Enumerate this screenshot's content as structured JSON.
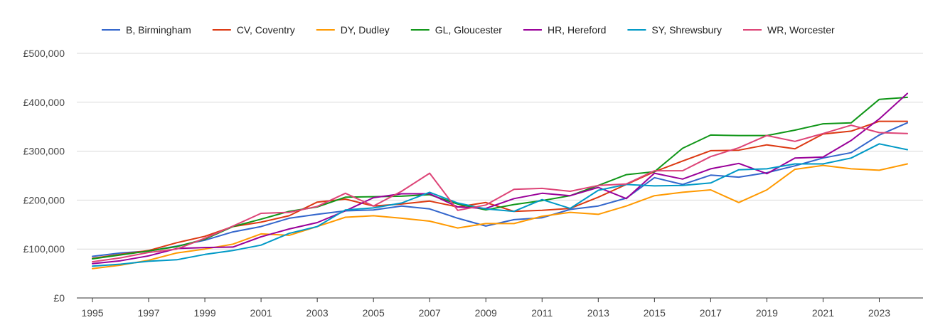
{
  "chart_data": {
    "type": "line",
    "title": "",
    "xlabel": "",
    "ylabel": "",
    "x": [
      1995,
      1996,
      1997,
      1998,
      1999,
      2000,
      2001,
      2002,
      2003,
      2004,
      2005,
      2006,
      2007,
      2008,
      2009,
      2010,
      2011,
      2012,
      2013,
      2014,
      2015,
      2016,
      2017,
      2018,
      2019,
      2020,
      2021,
      2022,
      2023,
      2024
    ],
    "xlim": [
      1995,
      2024
    ],
    "ylim": [
      0,
      500000
    ],
    "x_ticks": [
      "1995",
      "1997",
      "1999",
      "2001",
      "2003",
      "2005",
      "2007",
      "2009",
      "2011",
      "2013",
      "2015",
      "2017",
      "2019",
      "2021",
      "2023"
    ],
    "y_ticks": [
      "£0",
      "£100,000",
      "£200,000",
      "£300,000",
      "£400,000",
      "£500,000"
    ],
    "y_tick_values": [
      0,
      100000,
      200000,
      300000,
      400000,
      500000
    ],
    "grid": true,
    "legend_position": "top",
    "series": [
      {
        "name": "B, Birmingham",
        "color": "#3366cc",
        "values": [
          85000,
          92000,
          96000,
          106000,
          118000,
          135000,
          146000,
          163000,
          171000,
          178000,
          180000,
          188000,
          182000,
          163000,
          147000,
          160000,
          164000,
          181000,
          188000,
          204000,
          246000,
          232000,
          251000,
          247000,
          256000,
          270000,
          286000,
          297000,
          333000,
          358000
        ]
      },
      {
        "name": "CV, Coventry",
        "color": "#dc3912",
        "values": [
          81000,
          89000,
          97000,
          113000,
          126000,
          146000,
          155000,
          168000,
          196000,
          202000,
          188000,
          192000,
          198000,
          186000,
          195000,
          177000,
          179000,
          183000,
          206000,
          232000,
          258000,
          280000,
          301000,
          302000,
          313000,
          305000,
          335000,
          341000,
          361000,
          361000
        ]
      },
      {
        "name": "DY, Dudley",
        "color": "#ff9900",
        "values": [
          60000,
          67000,
          77000,
          92000,
          100000,
          110000,
          131000,
          128000,
          146000,
          165000,
          168000,
          163000,
          157000,
          143000,
          152000,
          152000,
          167000,
          175000,
          171000,
          188000,
          209000,
          216000,
          221000,
          195000,
          221000,
          263000,
          271000,
          264000,
          261000,
          274000
        ]
      },
      {
        "name": "GL, Gloucester",
        "color": "#109618",
        "values": [
          80000,
          88000,
          96000,
          105000,
          120000,
          146000,
          161000,
          177000,
          186000,
          206000,
          207000,
          208000,
          211000,
          192000,
          180000,
          191000,
          199000,
          209000,
          230000,
          252000,
          258000,
          306000,
          333000,
          332000,
          332000,
          343000,
          356000,
          358000,
          406000,
          410000
        ]
      },
      {
        "name": "HR, Hereford",
        "color": "#990099",
        "values": [
          70000,
          76000,
          86000,
          101000,
          103000,
          104000,
          125000,
          141000,
          154000,
          178000,
          205000,
          213000,
          213000,
          186000,
          183000,
          203000,
          214000,
          209000,
          226000,
          203000,
          255000,
          243000,
          264000,
          275000,
          254000,
          286000,
          288000,
          322000,
          366000,
          418000
        ]
      },
      {
        "name": "SY, Shrewsbury",
        "color": "#0099c6",
        "values": [
          65000,
          69000,
          75000,
          78000,
          89000,
          97000,
          108000,
          132000,
          146000,
          180000,
          184000,
          194000,
          216000,
          194000,
          182000,
          177000,
          201000,
          183000,
          220000,
          232000,
          229000,
          230000,
          235000,
          262000,
          264000,
          274000,
          274000,
          286000,
          315000,
          303000
        ]
      },
      {
        "name": "WR, Worcester",
        "color": "#dd4477",
        "values": [
          74000,
          82000,
          93000,
          100000,
          122000,
          147000,
          173000,
          175000,
          187000,
          214000,
          188000,
          218000,
          255000,
          179000,
          190000,
          222000,
          224000,
          218000,
          230000,
          233000,
          260000,
          260000,
          289000,
          307000,
          332000,
          320000,
          336000,
          353000,
          338000,
          336000
        ]
      }
    ]
  }
}
